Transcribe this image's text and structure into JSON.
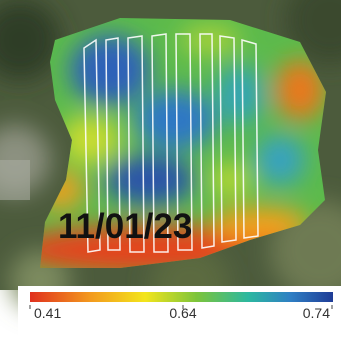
{
  "image": {
    "date_label": "11/01/23"
  },
  "colorbar": {
    "ticks": [
      "0.41",
      "0.64",
      "0.74"
    ]
  }
}
